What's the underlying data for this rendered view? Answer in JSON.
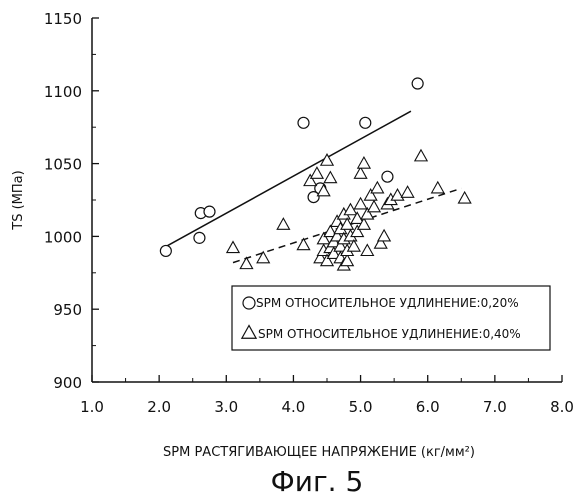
{
  "chart_data": {
    "type": "scatter",
    "title": "",
    "xlabel": "SPM РАСТЯГИВАЮЩЕЕ НАПРЯЖЕНИЕ (кг/мм²)",
    "ylabel": "TS (МПа)",
    "xlim": [
      1.0,
      8.0
    ],
    "ylim": [
      900,
      1150
    ],
    "x_ticks": [
      "1.0",
      "2.0",
      "3.0",
      "4.0",
      "5.0",
      "6.0",
      "7.0",
      "8.0"
    ],
    "y_ticks": [
      "900",
      "950",
      "1000",
      "1050",
      "1100",
      "1150"
    ],
    "grid": false,
    "legend_position": "bottom-right",
    "series": [
      {
        "name": "SPM ОТНОСИТЕЛЬНОЕ УДЛИНЕНИЕ:0,20%",
        "marker": "circle",
        "points": [
          [
            2.1,
            990
          ],
          [
            2.6,
            999
          ],
          [
            2.62,
            1016
          ],
          [
            2.75,
            1017
          ],
          [
            4.15,
            1078
          ],
          [
            4.3,
            1027
          ],
          [
            4.4,
            1033
          ],
          [
            5.07,
            1078
          ],
          [
            5.4,
            1041
          ],
          [
            5.85,
            1105
          ]
        ],
        "fit_line": {
          "style": "solid",
          "from": [
            2.1,
            993
          ],
          "to": [
            5.75,
            1086
          ]
        }
      },
      {
        "name": "SPM ОТНОСИТЕЛЬНОЕ УДЛИНЕНИЕ:0,40%",
        "marker": "triangle",
        "points": [
          [
            3.1,
            992
          ],
          [
            3.3,
            981
          ],
          [
            3.55,
            985
          ],
          [
            3.85,
            1008
          ],
          [
            4.15,
            994
          ],
          [
            4.25,
            1038
          ],
          [
            4.35,
            1043
          ],
          [
            4.45,
            1031
          ],
          [
            4.5,
            1052
          ],
          [
            4.55,
            1040
          ],
          [
            4.4,
            985
          ],
          [
            4.45,
            990
          ],
          [
            4.45,
            998
          ],
          [
            4.5,
            983
          ],
          [
            4.55,
            992
          ],
          [
            4.55,
            1003
          ],
          [
            4.6,
            988
          ],
          [
            4.6,
            996
          ],
          [
            4.65,
            1000
          ],
          [
            4.65,
            1010
          ],
          [
            4.7,
            985
          ],
          [
            4.7,
            993
          ],
          [
            4.7,
            1005
          ],
          [
            4.75,
            980
          ],
          [
            4.75,
            998
          ],
          [
            4.75,
            1015
          ],
          [
            4.8,
            983
          ],
          [
            4.8,
            990
          ],
          [
            4.8,
            1008
          ],
          [
            4.85,
            1000
          ],
          [
            4.85,
            1018
          ],
          [
            4.9,
            993
          ],
          [
            4.95,
            1003
          ],
          [
            4.95,
            1012
          ],
          [
            5.0,
            1043
          ],
          [
            5.0,
            1022
          ],
          [
            5.05,
            1050
          ],
          [
            5.05,
            1008
          ],
          [
            5.1,
            1015
          ],
          [
            5.1,
            990
          ],
          [
            5.15,
            1028
          ],
          [
            5.2,
            1020
          ],
          [
            5.25,
            1033
          ],
          [
            5.3,
            995
          ],
          [
            5.35,
            1000
          ],
          [
            5.4,
            1022
          ],
          [
            5.45,
            1025
          ],
          [
            5.55,
            1028
          ],
          [
            5.7,
            1030
          ],
          [
            5.9,
            1055
          ],
          [
            6.15,
            1033
          ],
          [
            6.55,
            1026
          ]
        ],
        "fit_line": {
          "style": "dashed",
          "from": [
            3.1,
            982
          ],
          "to": [
            6.5,
            1033
          ]
        }
      }
    ]
  },
  "figure_caption": "Фиг. 5"
}
